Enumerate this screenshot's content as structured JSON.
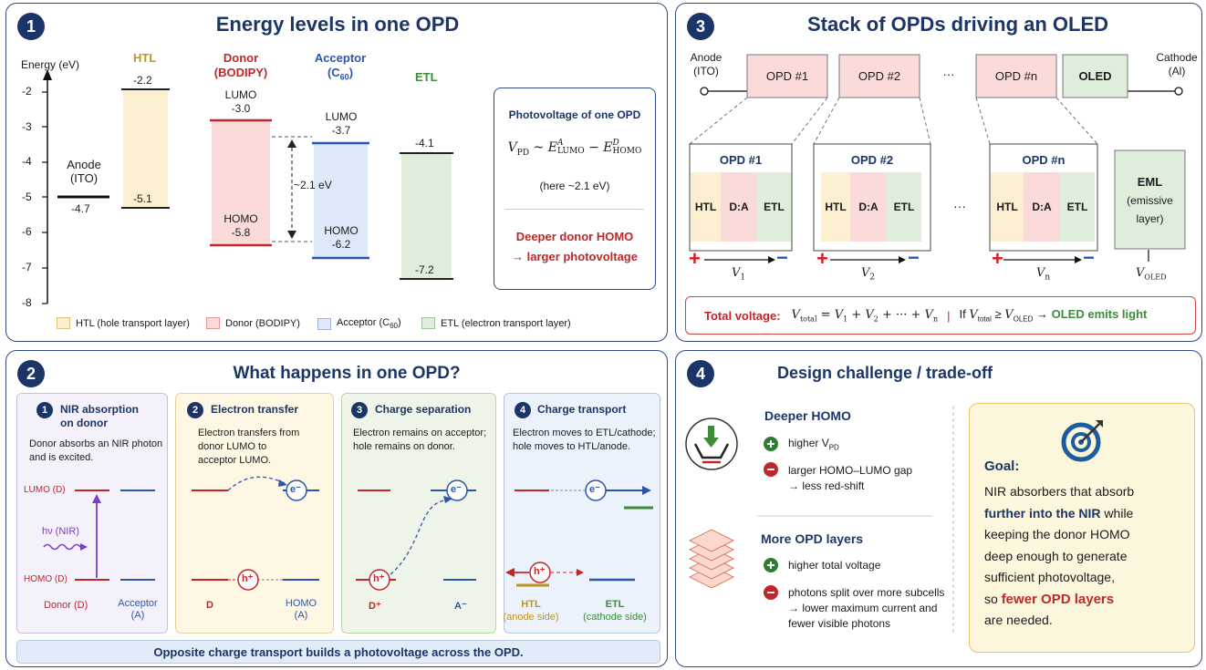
{
  "panel1": {
    "num": "1",
    "title": "Energy levels in one OPD",
    "y_axis_label": "Energy (eV)",
    "y_ticks": [
      "-2",
      "-3",
      "-4",
      "-5",
      "-6",
      "-7",
      "-8"
    ],
    "htl": {
      "name": "HTL",
      "top": "-2.2",
      "bottom": "-5.1"
    },
    "donor": {
      "name_line1": "Donor",
      "name_line2": "(BODIPY)",
      "lumo_label": "LUMO",
      "lumo": "-3.0",
      "homo_label": "HOMO",
      "homo": "-5.8"
    },
    "acceptor": {
      "name_line1": "Acceptor",
      "name_line2": "(C",
      "name_sub": "60",
      "name_close": ")",
      "lumo_label": "LUMO",
      "lumo": "-3.7",
      "homo_label": "HOMO",
      "homo": "-6.2"
    },
    "etl": {
      "name": "ETL",
      "top": "-4.1",
      "bottom": "-7.2"
    },
    "anode": {
      "line1": "Anode",
      "line2": "(ITO)",
      "value": "-4.7"
    },
    "gap": "~2.1 eV",
    "box": {
      "title": "Photovoltage of one OPD",
      "formula_v": "V",
      "formula_vsub": "PD",
      "formula_sim": " ~ ",
      "formula_e": "E",
      "formula_esup1": "A",
      "formula_esub1": "LUMO",
      "formula_minus": " − ",
      "formula_esup2": "D",
      "formula_esub2": "HOMO",
      "note": "(here ~2.1 eV)",
      "red1": "Deeper donor HOMO",
      "red2": "→ larger photovoltage"
    },
    "legend": [
      {
        "text": "HTL (hole transport layer)",
        "color": "#fbefcf",
        "border": "#e0c27a"
      },
      {
        "text": "Donor (BODIPY)",
        "color": "#fbdada",
        "border": "#e09a9a"
      },
      {
        "text": "Acceptor (C",
        "sub": "60",
        "close": ")",
        "color": "#dde8f8",
        "border": "#9ab4de"
      },
      {
        "text": "ETL (electron transport layer)",
        "color": "#dfeedb",
        "border": "#9cc49a"
      }
    ]
  },
  "panel2": {
    "num": "2",
    "title": "What happens in one OPD?",
    "steps": [
      {
        "num": "1",
        "title_line1": "NIR absorption",
        "title_line2": "on donor",
        "desc_line1": "Donor absorbs an NIR photon",
        "desc_line2": "and is excited.",
        "lumo": "LUMO (D)",
        "homo": "HOMO (D)",
        "photon": "hν (NIR)",
        "donor": "Donor (D)",
        "acceptor_line1": "Acceptor",
        "acceptor_line2": "(A)"
      },
      {
        "num": "2",
        "title_line1": "Electron transfer",
        "desc_line1": "Electron transfers from",
        "desc_line2": "donor LUMO to",
        "desc_line3": "acceptor LUMO.",
        "electron": "e⁻",
        "hole": "h⁺",
        "d": "D",
        "homo_line1": "HOMO",
        "homo_line2": "(A)"
      },
      {
        "num": "3",
        "title_line1": "Charge separation",
        "desc_line1": "Electron remains on acceptor;",
        "desc_line2": "hole remains on donor.",
        "electron": "e⁻",
        "hole": "h⁺",
        "dplus": "D⁺",
        "aminus": "A⁻"
      },
      {
        "num": "4",
        "title_line1": "Charge transport",
        "desc_line1": "Electron moves to ETL/cathode;",
        "desc_line2": "hole moves to HTL/anode.",
        "electron": "e⁻",
        "hole": "h⁺",
        "htl_line1": "HTL",
        "htl_line2": "(anode side)",
        "etl_line1": "ETL",
        "etl_line2": "(cathode side)"
      }
    ],
    "footer": "Opposite charge transport builds a photovoltage across the OPD."
  },
  "panel3": {
    "num": "3",
    "title": "Stack of OPDs driving an OLED",
    "anode_line1": "Anode",
    "anode_line2": "(ITO)",
    "cathode_line1": "Cathode",
    "cathode_line2": "(Al)",
    "chain": [
      "OPD #1",
      "OPD #2",
      "···",
      "OPD #n",
      "OLED"
    ],
    "details": [
      {
        "title": "OPD #1",
        "v": "V",
        "vsub": "1"
      },
      {
        "title": "OPD #2",
        "v": "V",
        "vsub": "2"
      },
      {
        "title": "OPD #n",
        "v": "V",
        "vsub": "n"
      }
    ],
    "layers": [
      "HTL",
      "D:A",
      "ETL"
    ],
    "dots": "···",
    "plus": "+",
    "minus": "−",
    "eml_line1": "EML",
    "eml_line2": "(emissive",
    "eml_line3": "layer)",
    "voled": "V",
    "voled_sub": "OLED",
    "total": {
      "label": "Total voltage:",
      "v": "V",
      "vsub": "total",
      "eq": " = ",
      "v1": "V",
      "s1": "1",
      "plus1": " + ",
      "v2": "V",
      "s2": "2",
      "plus2": " + ··· + ",
      "vn": "V",
      "sn": "n",
      "sep": "|",
      "if": "If ",
      "v3": "V",
      "s3": "total",
      "geq": " ≥ ",
      "v4": "V",
      "s4": "OLED",
      "arrow": " → ",
      "result": "OLED emits light"
    }
  },
  "panel4": {
    "num": "4",
    "title": "Design challenge / trade-off",
    "deeper": {
      "title": "Deeper HOMO",
      "plus_text": "higher V",
      "plus_sub": "PD",
      "minus_line1": "larger HOMO–LUMO gap",
      "minus_line2": "→ less red-shift"
    },
    "more": {
      "title": "More OPD layers",
      "plus_text": "higher total voltage",
      "minus_line1": "photons split over more subcells",
      "minus_line2": "→ lower maximum current and",
      "minus_line3": "fewer visible photons"
    },
    "goal": {
      "title": "Goal:",
      "l1": "NIR absorbers that absorb",
      "l2a": "further into the NIR",
      "l2b": " while",
      "l3": "keeping the donor HOMO",
      "l4": "deep enough to generate",
      "l5": "sufficient photovoltage,",
      "l6a": "so ",
      "l6b": "fewer OPD layers",
      "l7": "are needed."
    }
  }
}
